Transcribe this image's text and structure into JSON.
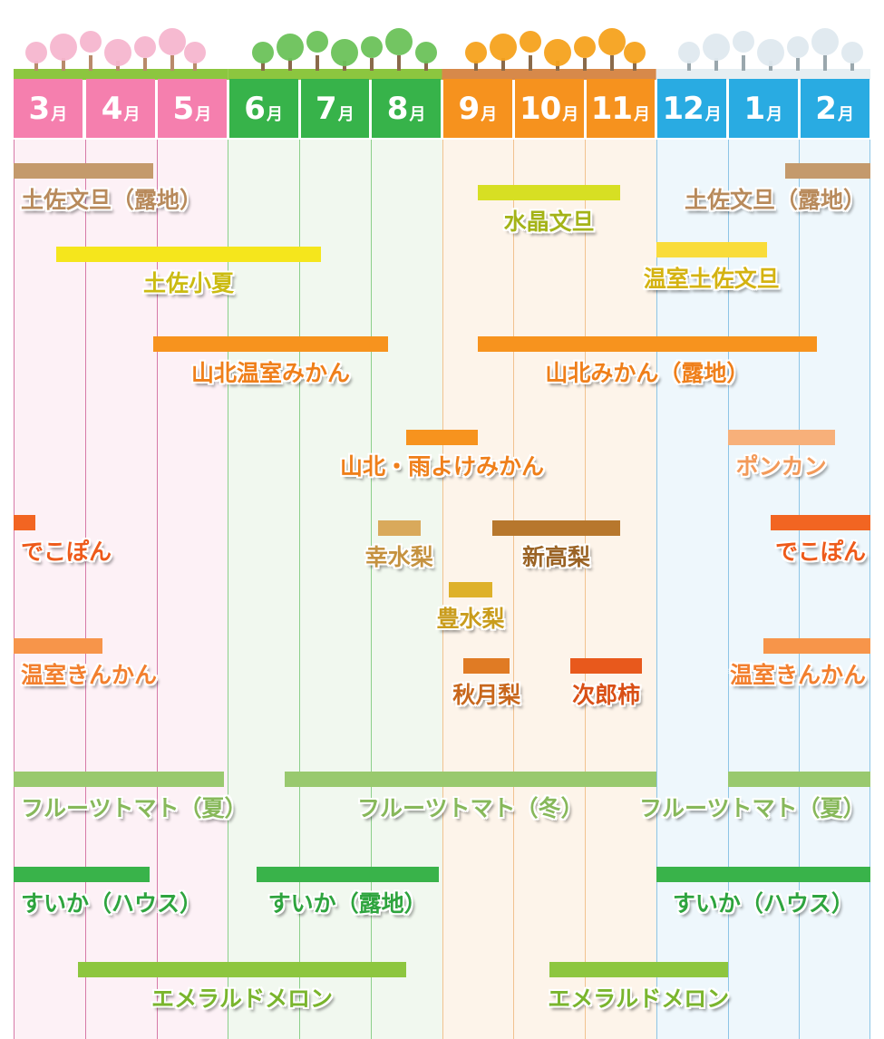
{
  "chart_data": {
    "type": "gantt",
    "month_unit": "月",
    "months": [
      "3",
      "4",
      "5",
      "6",
      "7",
      "8",
      "9",
      "10",
      "11",
      "12",
      "1",
      "2"
    ],
    "seasons": [
      {
        "name": "spring",
        "months": [
          0,
          1,
          2
        ],
        "color": "#f57fae",
        "bg": "#fdf1f6",
        "line": "#d77aa8"
      },
      {
        "name": "summer",
        "months": [
          3,
          4,
          5
        ],
        "color": "#37b34a",
        "bg": "#f1f8ef",
        "line": "#8ccf8a"
      },
      {
        "name": "autumn",
        "months": [
          6,
          7,
          8
        ],
        "color": "#f6921e",
        "bg": "#fdf4ea",
        "line": "#f1c28f"
      },
      {
        "name": "winter",
        "months": [
          9,
          10,
          11
        ],
        "color": "#29abe2",
        "bg": "#eef7fc",
        "line": "#8dc5e6"
      }
    ],
    "items": [
      {
        "name": "土佐文旦（露地）",
        "start": 0.0,
        "end": 1.95,
        "row": 0,
        "color": "#c49a6c",
        "text_color": "#b88a5b"
      },
      {
        "name": "土佐文旦（露地）",
        "start": 10.8,
        "end": 12.0,
        "row": 0,
        "color": "#c49a6c",
        "text_color": "#b88a5b"
      },
      {
        "name": "水晶文旦",
        "start": 6.5,
        "end": 8.5,
        "row": 1,
        "color": "#d7df23",
        "text_color": "#a4b318"
      },
      {
        "name": "土佐小夏",
        "start": 0.6,
        "end": 4.3,
        "row": 2,
        "color": "#f5e61c",
        "text_color": "#cbbb11"
      },
      {
        "name": "温室土佐文旦",
        "start": 9.0,
        "end": 10.55,
        "row": 3,
        "color": "#f9dc3a",
        "text_color": "#d4b311"
      },
      {
        "name": "山北温室みかん",
        "start": 1.95,
        "end": 5.25,
        "row": 4,
        "color": "#f7931e",
        "text_color": "#ef7f1a"
      },
      {
        "name": "山北みかん（露地）",
        "start": 6.5,
        "end": 11.25,
        "row": 4,
        "color": "#f7931e",
        "text_color": "#ef7f1a"
      },
      {
        "name": "山北・雨よけみかん",
        "start": 5.5,
        "end": 6.5,
        "row": 5,
        "color": "#f7931e",
        "text_color": "#ef7f1a"
      },
      {
        "name": "ポンカン",
        "start": 10.0,
        "end": 11.5,
        "row": 5,
        "color": "#f7b07a",
        "text_color": "#f39a5a"
      },
      {
        "name": "でこぽん",
        "start": 0.0,
        "end": 0.3,
        "row": 6,
        "color": "#f26522",
        "text_color": "#ee5a1a"
      },
      {
        "name": "でこぽん",
        "start": 10.6,
        "end": 12.0,
        "row": 6,
        "color": "#f26522",
        "text_color": "#ee5a1a"
      },
      {
        "name": "幸水梨",
        "start": 5.1,
        "end": 5.7,
        "row": 7,
        "color": "#d9a95b",
        "text_color": "#c59240"
      },
      {
        "name": "新高梨",
        "start": 6.7,
        "end": 8.5,
        "row": 7,
        "color": "#b7772d",
        "text_color": "#9a6325"
      },
      {
        "name": "豊水梨",
        "start": 6.1,
        "end": 6.7,
        "row": 8,
        "color": "#deb12a",
        "text_color": "#c99c1c"
      },
      {
        "name": "温室きんかん",
        "start": 0.0,
        "end": 1.25,
        "row": 9,
        "color": "#f7954a",
        "text_color": "#f27f2e"
      },
      {
        "name": "温室きんかん",
        "start": 10.5,
        "end": 12.0,
        "row": 9,
        "color": "#f7954a",
        "text_color": "#f27f2e"
      },
      {
        "name": "秋月梨",
        "start": 6.3,
        "end": 6.95,
        "row": 10,
        "color": "#e07b24",
        "text_color": "#c8671c"
      },
      {
        "name": "次郎柿",
        "start": 7.8,
        "end": 8.8,
        "row": 10,
        "color": "#e8591c",
        "text_color": "#d94f15"
      },
      {
        "name": "フルーツトマト（夏）",
        "start": 0.0,
        "end": 2.95,
        "row": 11,
        "color": "#99c96e",
        "text_color": "#87b85a"
      },
      {
        "name": "フルーツトマト（冬）",
        "start": 3.8,
        "end": 9.0,
        "row": 11,
        "color": "#99c96e",
        "text_color": "#87b85a"
      },
      {
        "name": "フルーツトマト（夏）",
        "start": 10.0,
        "end": 12.0,
        "row": 11,
        "color": "#99c96e",
        "text_color": "#87b85a"
      },
      {
        "name": "すいか（ハウス）",
        "start": 0.0,
        "end": 1.9,
        "row": 12,
        "color": "#39b34a",
        "text_color": "#2ea43e"
      },
      {
        "name": "すいか（露地）",
        "start": 3.4,
        "end": 5.95,
        "row": 12,
        "color": "#39b34a",
        "text_color": "#2ea43e"
      },
      {
        "name": "すいか（ハウス）",
        "start": 9.0,
        "end": 12.0,
        "row": 12,
        "color": "#39b34a",
        "text_color": "#2ea43e"
      },
      {
        "name": "エメラルドメロン",
        "start": 0.9,
        "end": 5.5,
        "row": 13,
        "color": "#8dc63f",
        "text_color": "#7ab52d"
      },
      {
        "name": "エメラルドメロン",
        "start": 7.5,
        "end": 10.0,
        "row": 13,
        "color": "#8dc63f",
        "text_color": "#7ab52d"
      }
    ]
  }
}
